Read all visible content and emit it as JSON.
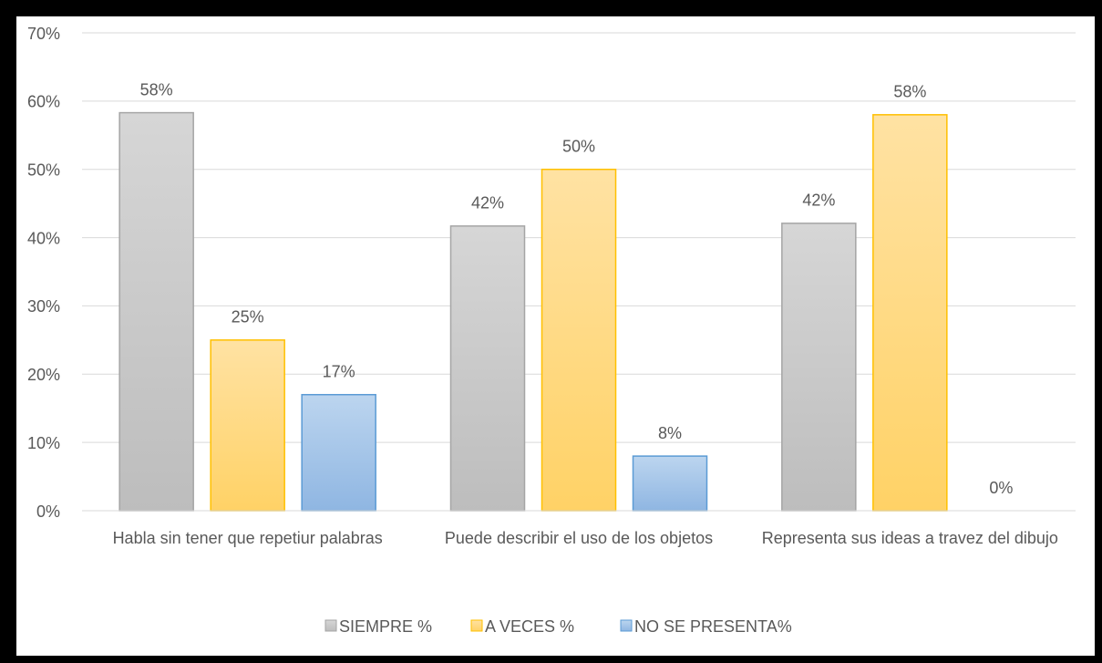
{
  "chart_data": {
    "type": "bar",
    "categories": [
      "Habla sin tener que repetiur palabras",
      "Puede describir el uso de los objetos",
      "Representa sus ideas a travez del dibujo"
    ],
    "series": [
      {
        "name": "SIEMPRE %",
        "color": "#c9c9c9",
        "values": [
          58.3,
          41.7,
          42.1
        ],
        "value_labels": [
          "58%",
          "42%",
          "42%"
        ]
      },
      {
        "name": "A VECES %",
        "color": "#ffd966",
        "values": [
          25,
          50,
          58
        ],
        "value_labels": [
          "25%",
          "50%",
          "58%"
        ]
      },
      {
        "name": "NO SE PRESENTA%",
        "color": "#9dc3e6",
        "values": [
          17,
          8,
          0
        ],
        "value_labels": [
          "17%",
          "8%",
          "0%"
        ]
      }
    ],
    "ylim": [
      0,
      70
    ],
    "yticks": [
      {
        "value": 0,
        "label": "0%"
      },
      {
        "value": 10,
        "label": "10%"
      },
      {
        "value": 20,
        "label": "20%"
      },
      {
        "value": 30,
        "label": "30%"
      },
      {
        "value": 40,
        "label": "40%"
      },
      {
        "value": 50,
        "label": "50%"
      },
      {
        "value": 60,
        "label": "60%"
      },
      {
        "value": 70,
        "label": "70%"
      }
    ],
    "grid": true,
    "legend": "bottom"
  }
}
